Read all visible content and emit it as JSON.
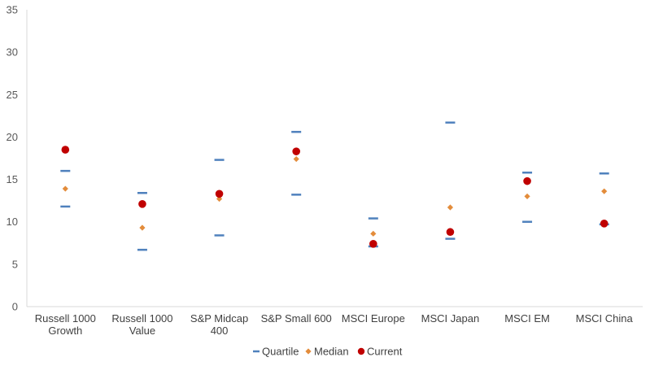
{
  "chart_data": {
    "type": "scatter",
    "title": "",
    "xlabel": "",
    "ylabel": "",
    "ylim": [
      0,
      35
    ],
    "yticks": [
      "0",
      "5",
      "10",
      "15",
      "20",
      "25",
      "30",
      "35"
    ],
    "grid": false,
    "legend_position": "bottom",
    "categories": [
      [
        "Russell 1000",
        "Growth"
      ],
      [
        "Russell 1000",
        "Value"
      ],
      [
        "S&P Midcap",
        "400"
      ],
      [
        "S&P Small 600"
      ],
      [
        "MSCI Europe"
      ],
      [
        "MSCI Japan"
      ],
      [
        "MSCI EM"
      ],
      [
        "MSCI China"
      ]
    ],
    "series": [
      {
        "name": "Quartile",
        "marker": "dash",
        "color": "#4f81bd",
        "values": [
          [
            11.8,
            16.0
          ],
          [
            6.7,
            13.4
          ],
          [
            8.4,
            17.3
          ],
          [
            13.2,
            20.6
          ],
          [
            7.1,
            10.4
          ],
          [
            8.0,
            21.7
          ],
          [
            10.0,
            15.8
          ],
          [
            9.7,
            15.7
          ]
        ]
      },
      {
        "name": "Median",
        "marker": "diamond",
        "color": "#e38c3b",
        "values": [
          13.9,
          9.3,
          12.7,
          17.4,
          8.6,
          11.7,
          13.0,
          13.6
        ]
      },
      {
        "name": "Current",
        "marker": "circle",
        "color": "#c00000",
        "values": [
          18.5,
          12.1,
          13.3,
          18.3,
          7.4,
          8.8,
          14.8,
          9.8
        ]
      }
    ]
  }
}
